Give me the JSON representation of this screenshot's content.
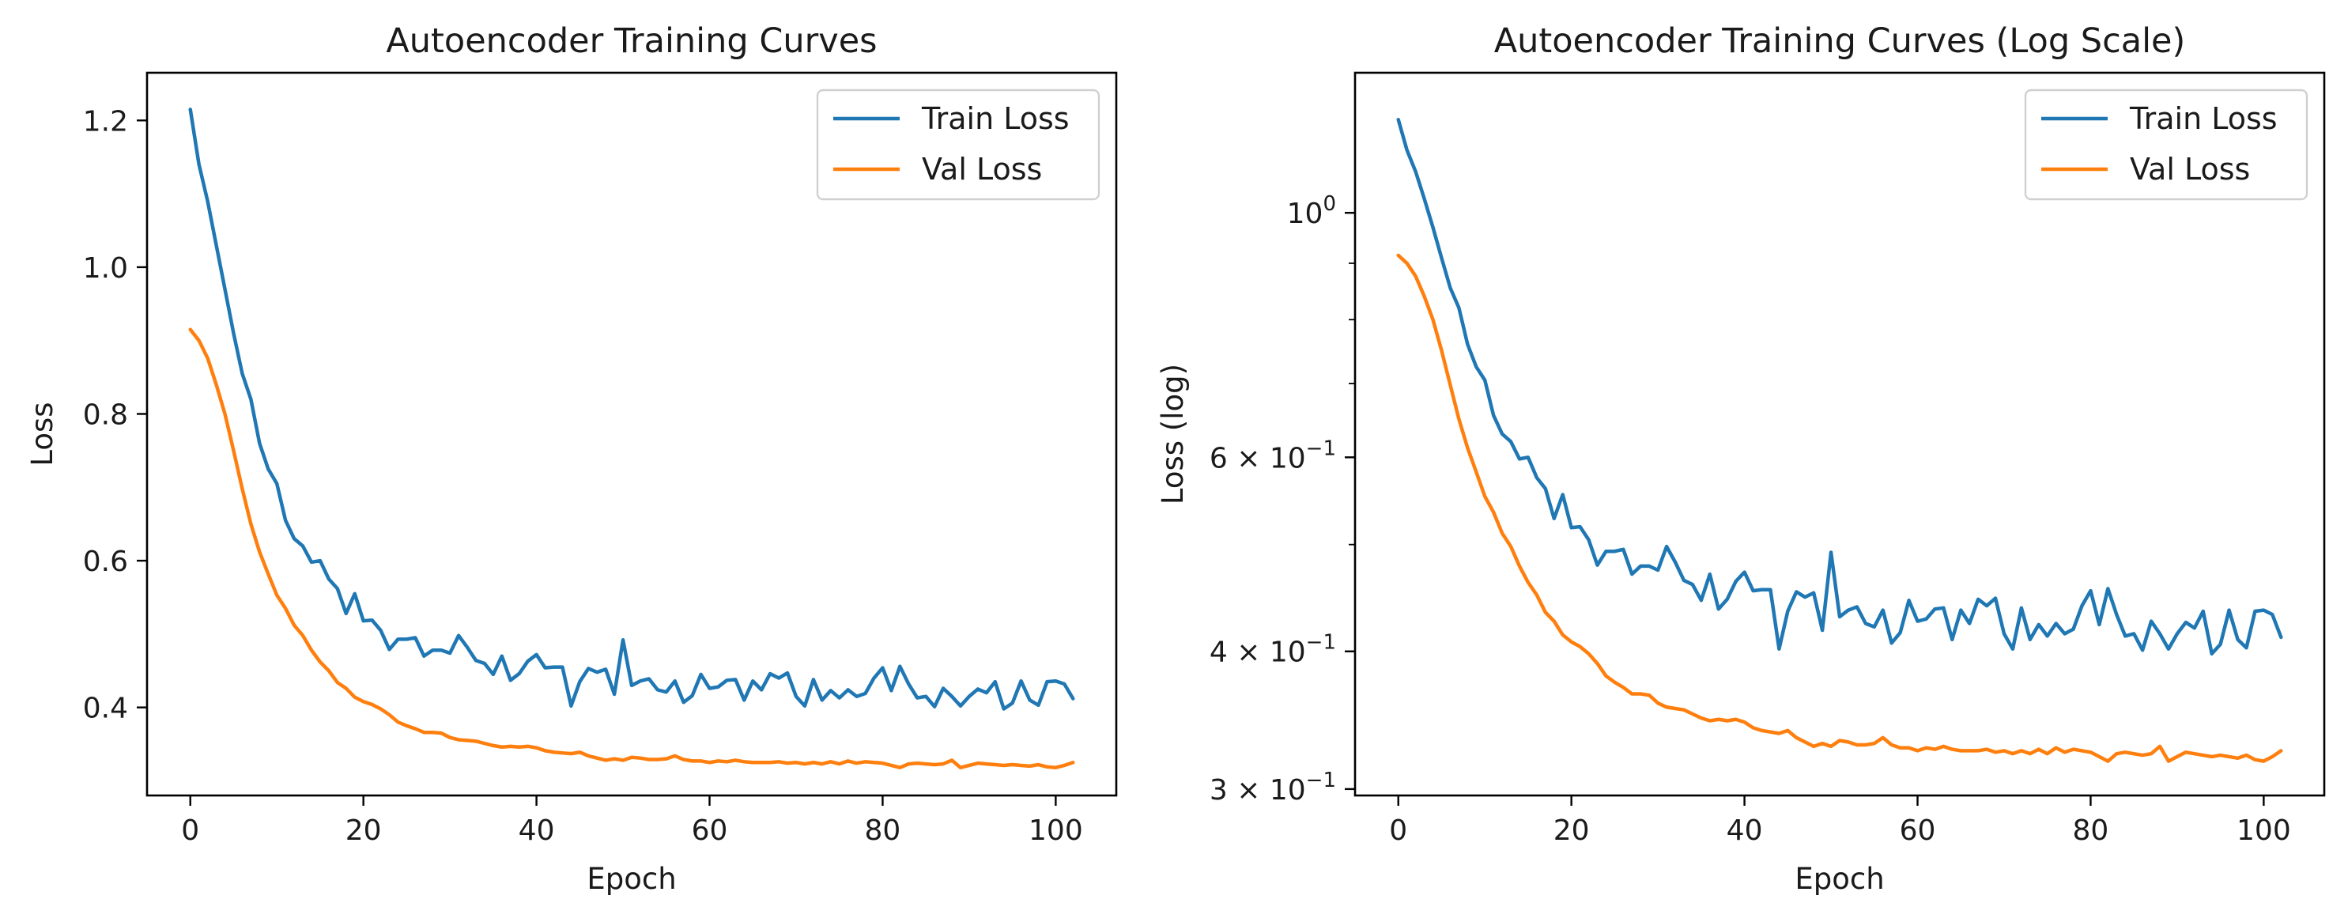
{
  "colors": {
    "train": "#1f77b4",
    "val": "#ff7f0e"
  },
  "chart_data": [
    {
      "type": "line",
      "title": "Autoencoder Training Curves",
      "xlabel": "Epoch",
      "ylabel": "Loss",
      "yscale": "linear",
      "xlim": [
        -5,
        107
      ],
      "ylim": [
        0.28,
        1.265
      ],
      "xticks": [
        0,
        20,
        40,
        60,
        80,
        100
      ],
      "yticks": [
        0.4,
        0.6,
        0.8,
        1.0,
        1.2
      ],
      "ytick_labels": [
        "0.4",
        "0.6",
        "0.8",
        "1.0",
        "1.2"
      ],
      "legend": "top-right",
      "grid": false,
      "series": [
        {
          "name": "Train Loss",
          "color": "#1f77b4",
          "x": [
            0,
            1,
            2,
            3,
            4,
            5,
            6,
            7,
            8,
            9,
            10,
            11,
            12,
            13,
            14,
            15,
            16,
            17,
            18,
            19,
            20,
            21,
            22,
            23,
            24,
            25,
            26,
            27,
            28,
            29,
            30,
            31,
            32,
            33,
            34,
            35,
            36,
            37,
            38,
            39,
            40,
            41,
            42,
            43,
            44,
            45,
            46,
            47,
            48,
            49,
            50,
            51,
            52,
            53,
            54,
            55,
            56,
            57,
            58,
            59,
            60,
            61,
            62,
            63,
            64,
            65,
            66,
            67,
            68,
            69,
            70,
            71,
            72,
            73,
            74,
            75,
            76,
            77,
            78,
            79,
            80,
            81,
            82,
            83,
            84,
            85,
            86,
            87,
            88,
            89,
            90,
            91,
            92,
            93,
            94,
            95,
            96,
            97,
            98,
            99,
            100,
            101,
            102
          ],
          "y": [
            1.215,
            1.14,
            1.09,
            1.03,
            0.97,
            0.91,
            0.855,
            0.82,
            0.76,
            0.725,
            0.705,
            0.655,
            0.63,
            0.62,
            0.598,
            0.6,
            0.575,
            0.562,
            0.528,
            0.555,
            0.518,
            0.519,
            0.505,
            0.479,
            0.493,
            0.493,
            0.495,
            0.47,
            0.478,
            0.478,
            0.474,
            0.498,
            0.482,
            0.464,
            0.46,
            0.445,
            0.47,
            0.437,
            0.446,
            0.463,
            0.472,
            0.454,
            0.455,
            0.455,
            0.402,
            0.435,
            0.453,
            0.448,
            0.452,
            0.418,
            0.492,
            0.43,
            0.436,
            0.439,
            0.424,
            0.421,
            0.436,
            0.407,
            0.416,
            0.445,
            0.426,
            0.428,
            0.437,
            0.438,
            0.41,
            0.436,
            0.424,
            0.446,
            0.44,
            0.447,
            0.415,
            0.402,
            0.438,
            0.41,
            0.423,
            0.413,
            0.424,
            0.415,
            0.419,
            0.44,
            0.454,
            0.423,
            0.456,
            0.432,
            0.413,
            0.415,
            0.401,
            0.426,
            0.415,
            0.402,
            0.415,
            0.425,
            0.42,
            0.435,
            0.398,
            0.406,
            0.436,
            0.41,
            0.403,
            0.435,
            0.436,
            0.432,
            0.412
          ]
        },
        {
          "name": "Val Loss",
          "color": "#ff7f0e",
          "x": [
            0,
            1,
            2,
            3,
            4,
            5,
            6,
            7,
            8,
            9,
            10,
            11,
            12,
            13,
            14,
            15,
            16,
            17,
            18,
            19,
            20,
            21,
            22,
            23,
            24,
            25,
            26,
            27,
            28,
            29,
            30,
            31,
            32,
            33,
            34,
            35,
            36,
            37,
            38,
            39,
            40,
            41,
            42,
            43,
            44,
            45,
            46,
            47,
            48,
            49,
            50,
            51,
            52,
            53,
            54,
            55,
            56,
            57,
            58,
            59,
            60,
            61,
            62,
            63,
            64,
            65,
            66,
            67,
            68,
            69,
            70,
            71,
            72,
            73,
            74,
            75,
            76,
            77,
            78,
            79,
            80,
            81,
            82,
            83,
            84,
            85,
            86,
            87,
            88,
            89,
            90,
            91,
            92,
            93,
            94,
            95,
            96,
            97,
            98,
            99,
            100,
            101,
            102
          ],
          "y": [
            0.915,
            0.9,
            0.876,
            0.84,
            0.8,
            0.75,
            0.698,
            0.65,
            0.612,
            0.582,
            0.553,
            0.535,
            0.512,
            0.498,
            0.478,
            0.462,
            0.45,
            0.434,
            0.426,
            0.414,
            0.408,
            0.404,
            0.398,
            0.39,
            0.38,
            0.375,
            0.371,
            0.366,
            0.366,
            0.365,
            0.359,
            0.356,
            0.355,
            0.354,
            0.351,
            0.348,
            0.346,
            0.347,
            0.346,
            0.347,
            0.345,
            0.341,
            0.339,
            0.338,
            0.337,
            0.339,
            0.334,
            0.331,
            0.328,
            0.33,
            0.328,
            0.332,
            0.331,
            0.329,
            0.329,
            0.33,
            0.334,
            0.329,
            0.327,
            0.327,
            0.325,
            0.327,
            0.326,
            0.328,
            0.326,
            0.325,
            0.325,
            0.325,
            0.326,
            0.324,
            0.325,
            0.323,
            0.325,
            0.323,
            0.326,
            0.323,
            0.327,
            0.324,
            0.326,
            0.325,
            0.324,
            0.321,
            0.318,
            0.323,
            0.324,
            0.323,
            0.322,
            0.323,
            0.328,
            0.318,
            0.321,
            0.324,
            0.323,
            0.322,
            0.321,
            0.322,
            0.321,
            0.32,
            0.322,
            0.319,
            0.318,
            0.321,
            0.325
          ]
        }
      ]
    },
    {
      "type": "line",
      "title": "Autoencoder Training Curves (Log Scale)",
      "xlabel": "Epoch",
      "ylabel": "Loss (log)",
      "yscale": "log",
      "xlim": [
        -5,
        107
      ],
      "ylim": [
        0.296,
        1.34
      ],
      "xticks": [
        0,
        20,
        40,
        60,
        80,
        100
      ],
      "yticks": [
        1.0,
        0.6,
        0.4,
        0.3
      ],
      "ytick_labels": [
        {
          "mantissa": "",
          "base": "10",
          "exp": "0"
        },
        {
          "mantissa": "6 × ",
          "base": "10",
          "exp": "−1"
        },
        {
          "mantissa": "4 × ",
          "base": "10",
          "exp": "−1"
        },
        {
          "mantissa": "3 × ",
          "base": "10",
          "exp": "−1"
        }
      ],
      "yminor": [
        0.5,
        0.7,
        0.8,
        0.9
      ],
      "legend": "top-right",
      "grid": false,
      "series": [
        {
          "name": "Train Loss",
          "color": "#1f77b4",
          "same_as": 0
        },
        {
          "name": "Val Loss",
          "color": "#ff7f0e",
          "same_as": 1
        }
      ]
    }
  ]
}
